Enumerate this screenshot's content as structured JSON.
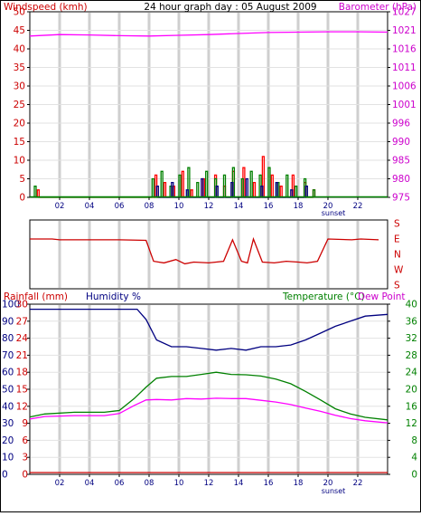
{
  "chart_data": [
    {
      "type": "line",
      "title": "24 hour graph day : 05 August 2009",
      "ylabel_left": "Windspeed (kmh)",
      "ylabel_right": "Barometer (hPa)",
      "x_ticks": [
        "02",
        "04",
        "06",
        "08",
        "10",
        "12",
        "14",
        "16",
        "18",
        "20",
        "22"
      ],
      "annotation": "sunset",
      "ylim_left": [
        0,
        50
      ],
      "y_ticks_left": [
        "0",
        "5",
        "10",
        "15",
        "20",
        "25",
        "30",
        "35",
        "40",
        "45",
        "50"
      ],
      "ylim_right": [
        975,
        1027
      ],
      "y_ticks_right": [
        "975",
        "980",
        "985",
        "990",
        "996",
        "1001",
        "1006",
        "1011",
        "1016",
        "1021",
        "1027"
      ],
      "grid": true,
      "series": [
        {
          "color": "#ff00ff",
          "axis": "right",
          "x": [
            0,
            2,
            4,
            6,
            8,
            10,
            12,
            14,
            16,
            18,
            20,
            22,
            24
          ],
          "y": [
            1020.2,
            1020.6,
            1020.5,
            1020.3,
            1020.2,
            1020.4,
            1020.6,
            1020.9,
            1021.2,
            1021.3,
            1021.4,
            1021.4,
            1021.3
          ]
        },
        {
          "color": "#ff0000",
          "axis": "left",
          "x": [
            0.5,
            8.4,
            9.0,
            9.6,
            10.2,
            10.8,
            11.6,
            12.4,
            13.0,
            13.6,
            14.3,
            15.0,
            15.6,
            16.2,
            16.8,
            17.6,
            18.4,
            19.0
          ],
          "y": [
            2,
            6,
            4,
            3,
            7,
            2,
            5,
            6,
            3,
            7,
            8,
            4,
            11,
            6,
            3,
            6,
            4,
            2
          ]
        },
        {
          "color": "#008000",
          "axis": "left",
          "x": [
            0.3,
            8.2,
            8.8,
            9.4,
            10.0,
            10.6,
            11.2,
            11.8,
            12.4,
            13.0,
            13.6,
            14.2,
            14.8,
            15.4,
            16.0,
            16.6,
            17.2,
            17.8,
            18.4,
            19.0
          ],
          "y": [
            3,
            5,
            7,
            3,
            6,
            8,
            4,
            7,
            5,
            6,
            8,
            5,
            7,
            6,
            8,
            4,
            6,
            3,
            5,
            2
          ]
        },
        {
          "color": "#000080",
          "axis": "left",
          "x": [
            8.5,
            9.5,
            10.5,
            11.5,
            12.5,
            13.5,
            14.5,
            15.5,
            16.5,
            17.5,
            18.5
          ],
          "y": [
            3,
            4,
            2,
            5,
            3,
            4,
            5,
            3,
            4,
            2,
            3
          ]
        }
      ]
    },
    {
      "type": "line",
      "ylabel_right": "S E N W S",
      "x_ticks": [
        "02",
        "04",
        "06",
        "08",
        "10",
        "12",
        "14",
        "16",
        "18",
        "20",
        "22"
      ],
      "annotation": "sunset",
      "y_ticks_right": [
        "S",
        "E",
        "N",
        "W",
        "S"
      ],
      "series": [
        {
          "color": "#cc0000",
          "x": [
            0,
            1.5,
            2,
            6,
            7.8,
            8.3,
            9,
            9.8,
            10.4,
            11,
            12,
            13,
            13.6,
            14.2,
            14.6,
            15,
            15.6,
            16.4,
            17.2,
            18,
            18.6,
            19.3,
            20,
            21.6,
            22.2,
            23.4
          ],
          "y": [
            270,
            270,
            265,
            265,
            262,
            140,
            130,
            150,
            125,
            135,
            130,
            140,
            265,
            140,
            130,
            270,
            135,
            130,
            140,
            135,
            130,
            140,
            270,
            265,
            270,
            265
          ]
        }
      ]
    },
    {
      "type": "line",
      "ylabel_left_1": "Rainfall (mm)",
      "ylabel_left_2": "Humidity %",
      "ylabel_right_1": "Temperature (°C)",
      "ylabel_right_2": "Dew Point",
      "x_ticks": [
        "02",
        "04",
        "06",
        "08",
        "10",
        "12",
        "14",
        "16",
        "18",
        "20",
        "22"
      ],
      "annotation": "sunset",
      "y_ticks_humidity": [
        "0",
        "10",
        "20",
        "30",
        "40",
        "50",
        "60",
        "70",
        "80",
        "90",
        "100"
      ],
      "y_ticks_rain": [
        "0",
        "3",
        "6",
        "9",
        "12",
        "15",
        "18",
        "21",
        "24",
        "27",
        "30"
      ],
      "y_ticks_temp": [
        "0",
        "4",
        "8",
        "12",
        "16",
        "20",
        "24",
        "28",
        "32",
        "36",
        "40"
      ],
      "ylim_humidity": [
        0,
        100
      ],
      "ylim_temp": [
        0,
        40
      ],
      "series": [
        {
          "color": "#000080",
          "axis": "humidity",
          "x": [
            0,
            2,
            4,
            6,
            7.2,
            7.8,
            8.5,
            9.5,
            10.5,
            11.5,
            12.5,
            13.5,
            14.5,
            15.5,
            16.5,
            17.5,
            18.5,
            19.5,
            20.5,
            21.5,
            22.5,
            24
          ],
          "y": [
            97,
            97,
            97,
            97,
            97,
            91,
            79,
            75,
            75,
            74,
            73,
            74,
            73,
            75,
            75,
            76,
            79,
            83,
            87,
            90,
            93,
            94
          ]
        },
        {
          "color": "#008000",
          "axis": "temp",
          "x": [
            0,
            1,
            3,
            5,
            6,
            7,
            7.8,
            8.5,
            9.5,
            10.5,
            11.5,
            12.5,
            13.5,
            14.5,
            15.5,
            16.5,
            17.5,
            18.5,
            19.5,
            20.5,
            21.5,
            22.5,
            24
          ],
          "y": [
            13.5,
            14.2,
            14.6,
            14.6,
            15,
            17.8,
            20.5,
            22.6,
            23,
            23,
            23.5,
            24,
            23.5,
            23.4,
            23.1,
            22.4,
            21.3,
            19.5,
            17.5,
            15.4,
            14.2,
            13.4,
            12.8
          ]
        },
        {
          "color": "#ff00ff",
          "axis": "temp",
          "x": [
            0,
            1,
            3,
            5,
            6,
            7,
            7.8,
            8.5,
            9.5,
            10.5,
            11.5,
            12.5,
            13.5,
            14.5,
            15.5,
            16.5,
            17.5,
            18.5,
            19.5,
            20.5,
            21.5,
            22.5,
            24
          ],
          "y": [
            13,
            13.6,
            13.8,
            13.8,
            14.3,
            16.2,
            17.5,
            17.6,
            17.5,
            17.8,
            17.7,
            17.9,
            17.8,
            17.8,
            17.4,
            17,
            16.4,
            15.6,
            14.8,
            13.9,
            13.1,
            12.6,
            12.1
          ]
        },
        {
          "color": "#cc0000",
          "axis": "rain",
          "x": [
            0,
            24
          ],
          "y": [
            0,
            0
          ]
        }
      ]
    }
  ]
}
